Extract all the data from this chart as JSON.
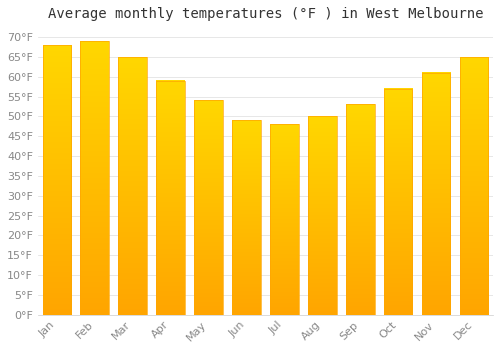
{
  "title": "Average monthly temperatures (°F ) in West Melbourne",
  "months": [
    "Jan",
    "Feb",
    "Mar",
    "Apr",
    "May",
    "Jun",
    "Jul",
    "Aug",
    "Sep",
    "Oct",
    "Nov",
    "Dec"
  ],
  "values": [
    68,
    69,
    65,
    59,
    54,
    49,
    48,
    50,
    53,
    57,
    61,
    65
  ],
  "bar_color_top": "#FFD700",
  "bar_color_bottom": "#FFA500",
  "background_color": "#FFFFFF",
  "grid_color": "#DDDDDD",
  "ylim": [
    0,
    72
  ],
  "yticks": [
    0,
    5,
    10,
    15,
    20,
    25,
    30,
    35,
    40,
    45,
    50,
    55,
    60,
    65,
    70
  ],
  "title_fontsize": 10,
  "tick_fontsize": 8,
  "figsize": [
    5.0,
    3.5
  ],
  "dpi": 100
}
